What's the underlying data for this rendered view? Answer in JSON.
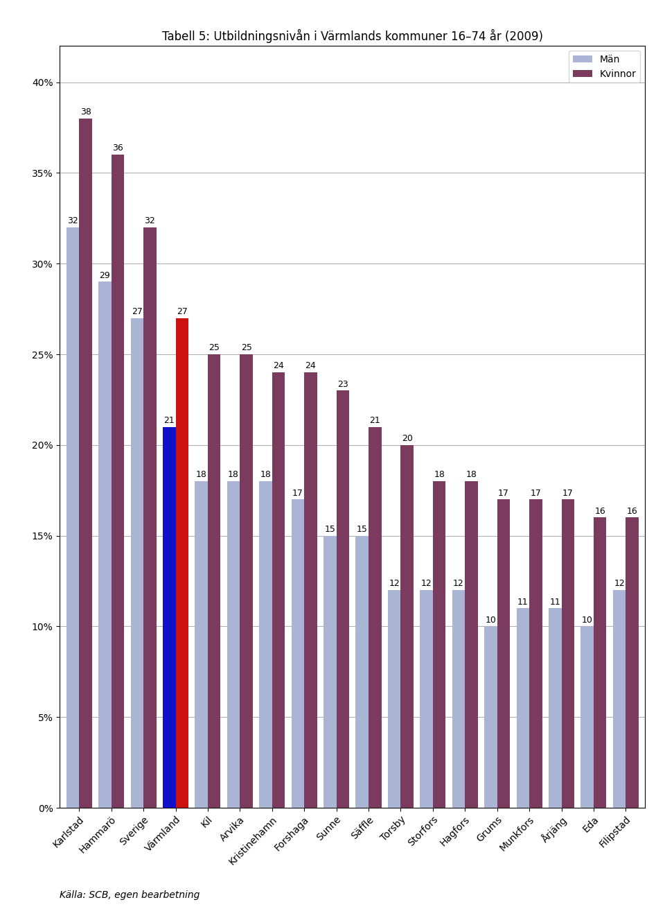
{
  "chart_data": {
    "type": "bar",
    "title": "Tabell 5: Utbildningsnivån i Värmlands kommuner 16–74 år (2009)",
    "categories": [
      "Karlstad",
      "Hammarö",
      "Sverige",
      "Värmland",
      "Kil",
      "Arvika",
      "Kristinehamn",
      "Forshaga",
      "Sunne",
      "Säffle",
      "Torsby",
      "Storfors",
      "Hagfors",
      "Grums",
      "Munkfors",
      "Årjäng",
      "Eda",
      "Filipstad"
    ],
    "series": [
      {
        "name": "Män",
        "color": "#aab4d4",
        "colors": [
          "#aab4d4",
          "#aab4d4",
          "#aab4d4",
          "#1111cc",
          "#aab4d4",
          "#aab4d4",
          "#aab4d4",
          "#aab4d4",
          "#aab4d4",
          "#aab4d4",
          "#aab4d4",
          "#aab4d4",
          "#aab4d4",
          "#aab4d4",
          "#aab4d4",
          "#aab4d4",
          "#aab4d4",
          "#aab4d4"
        ],
        "values": [
          32,
          29,
          27,
          21,
          18,
          18,
          18,
          17,
          15,
          15,
          12,
          12,
          12,
          10,
          11,
          11,
          10,
          12
        ]
      },
      {
        "name": "Kvinnor",
        "color": "#7b3b5e",
        "colors": [
          "#7b3b5e",
          "#7b3b5e",
          "#7b3b5e",
          "#cc1111",
          "#7b3b5e",
          "#7b3b5e",
          "#7b3b5e",
          "#7b3b5e",
          "#7b3b5e",
          "#7b3b5e",
          "#7b3b5e",
          "#7b3b5e",
          "#7b3b5e",
          "#7b3b5e",
          "#7b3b5e",
          "#7b3b5e",
          "#7b3b5e",
          "#7b3b5e"
        ],
        "values": [
          38,
          36,
          32,
          27,
          25,
          25,
          24,
          24,
          23,
          21,
          20,
          18,
          18,
          17,
          17,
          17,
          16,
          16
        ]
      }
    ],
    "ylim": [
      0,
      42
    ],
    "yticks": [
      {
        "value": 0,
        "label": "0%"
      },
      {
        "value": 5,
        "label": "5%"
      },
      {
        "value": 10,
        "label": "10%"
      },
      {
        "value": 15,
        "label": "15%"
      },
      {
        "value": 20,
        "label": "20%"
      },
      {
        "value": 25,
        "label": "25%"
      },
      {
        "value": 30,
        "label": "30%"
      },
      {
        "value": 35,
        "label": "35%"
      },
      {
        "value": 40,
        "label": "40%"
      }
    ],
    "grid": true,
    "legend": "upper right",
    "data_labels": true,
    "annotations": [
      "Källa: SCB, egen bearbetning"
    ]
  }
}
